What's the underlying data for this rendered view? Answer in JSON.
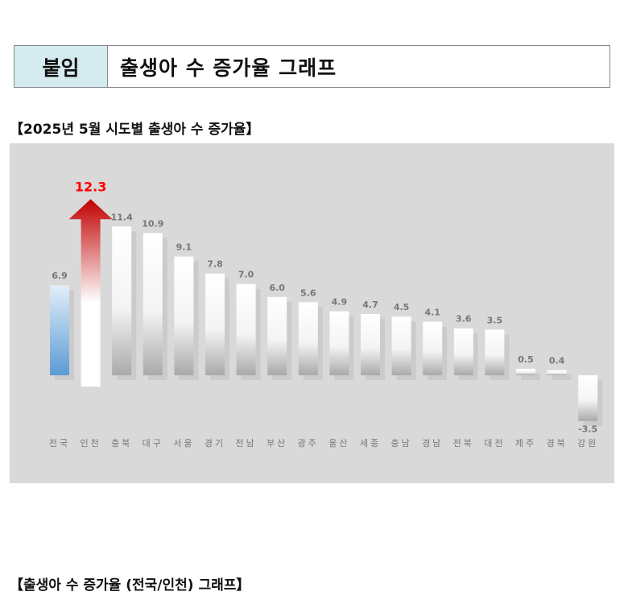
{
  "header": {
    "tag": "붙임",
    "title": "출생아 수 증가율 그래프"
  },
  "section1_title": "【2025년 5월 시도별 출생아 수 증가율】",
  "section2_title": "【출생아 수 증가율 (전국/인천) 그래프】",
  "chart_data": {
    "type": "bar",
    "title": "",
    "categories": [
      "전국",
      "인천",
      "충북",
      "대구",
      "서울",
      "경기",
      "전남",
      "부산",
      "광주",
      "울산",
      "세종",
      "충남",
      "경남",
      "전북",
      "대전",
      "제주",
      "경북",
      "강원"
    ],
    "values": [
      6.9,
      12.3,
      11.4,
      10.9,
      9.1,
      7.8,
      7.0,
      6.0,
      5.6,
      4.9,
      4.7,
      4.5,
      4.1,
      3.6,
      3.5,
      0.5,
      0.4,
      -3.5
    ],
    "value_labels": [
      "6.9",
      "12.3",
      "11.4",
      "10.9",
      "9.1",
      "7.8",
      "7.0",
      "6.0",
      "5.6",
      "4.9",
      "4.7",
      "4.5",
      "4.1",
      "3.6",
      "3.5",
      "0.5",
      "0.4",
      "-3.5"
    ],
    "highlight": {
      "전국": "#5b9bd5",
      "인천": "#c00000"
    },
    "highlight_label_color": "#ff0000",
    "grid": false,
    "legend": "none",
    "background": "#d9d9d9"
  }
}
